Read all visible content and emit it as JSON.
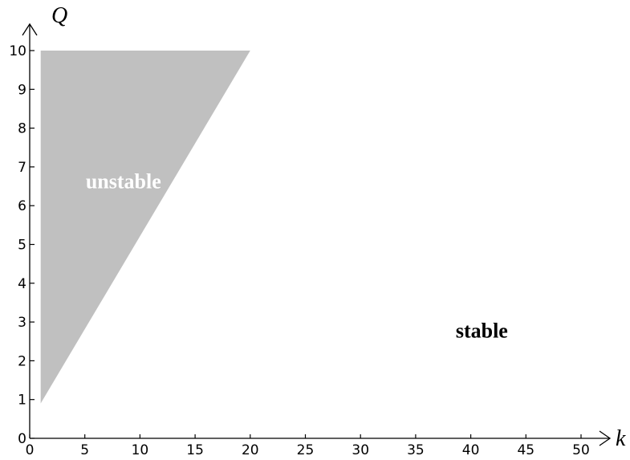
{
  "chart_data": {
    "type": "area",
    "title": "",
    "xlabel": "k",
    "ylabel": "Q",
    "xlim": [
      0,
      50
    ],
    "ylim": [
      0,
      10
    ],
    "x_ticks": [
      0,
      5,
      10,
      15,
      20,
      25,
      30,
      35,
      40,
      45,
      50
    ],
    "y_ticks": [
      0,
      1,
      2,
      3,
      4,
      5,
      6,
      7,
      8,
      9,
      10
    ],
    "grid": false,
    "series": [
      {
        "name": "unstable",
        "fill_color": "#c0c0c0",
        "polygon": [
          {
            "x": 1,
            "y": 0.9
          },
          {
            "x": 1,
            "y": 10
          },
          {
            "x": 20,
            "y": 10
          }
        ]
      }
    ],
    "annotations": [
      {
        "text": "unstable",
        "x": 8.5,
        "y": 6.45,
        "color": "#ffffff"
      },
      {
        "text": "stable",
        "x": 41,
        "y": 2.6,
        "color": "#000000"
      }
    ]
  }
}
